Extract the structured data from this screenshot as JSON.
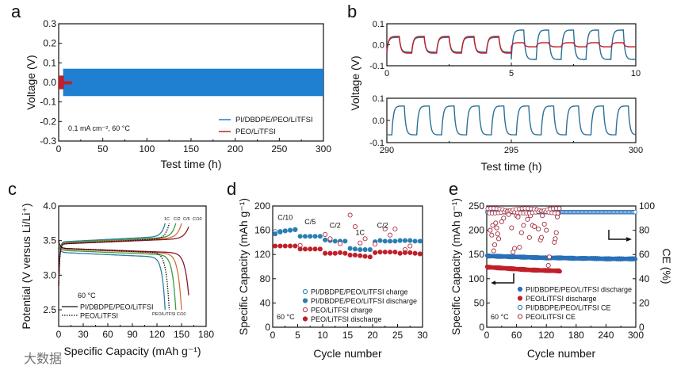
{
  "panel_letters": [
    "a",
    "b",
    "c",
    "d",
    "e"
  ],
  "watermark": "大数据",
  "colors": {
    "blue": "#1f7fd0",
    "teal": "#2a6f96",
    "red": "#c0202a",
    "darkred": "#8a1a2a",
    "green": "#3a9a4a",
    "orange": "#d0703a",
    "black": "#111111"
  },
  "chart_data": [
    {
      "id": "a",
      "type": "line",
      "xlabel": "Test time (h)",
      "ylabel": "Voltage (V)",
      "xlim": [
        0,
        300
      ],
      "ylim": [
        -0.3,
        0.3
      ],
      "xticks": [
        0,
        50,
        100,
        150,
        200,
        250,
        300
      ],
      "yticks": [
        -0.3,
        -0.2,
        -0.1,
        0.0,
        0.1,
        0.2,
        0.3
      ],
      "ytick_labels": [
        "-0.3",
        "-0.2",
        "-0.1",
        "0.0",
        "0.1",
        "0.2",
        "0.3"
      ],
      "annotation": "0.1 mA cm⁻², 60 °C",
      "series": [
        {
          "name": "PI/DBDPE/PEO/LiTFSI",
          "color": "#1f7fd0",
          "t_start": 5,
          "t_end": 300,
          "amplitude": 0.07
        },
        {
          "name": "PEO/LiTFSI",
          "color": "#c0202a",
          "t_start": 0,
          "t_end": 15,
          "amplitude": 0.035
        }
      ],
      "legend": "bottom-right"
    },
    {
      "id": "b-top",
      "type": "line",
      "xlabel": "",
      "ylabel": "Voltage (V)",
      "xlim": [
        0,
        10
      ],
      "ylim": [
        -0.1,
        0.1
      ],
      "xticks": [
        0,
        5,
        10
      ],
      "yticks": [
        -0.1,
        0.0,
        0.1
      ],
      "ytick_labels": [
        "-0.1",
        "0.0",
        "0.1"
      ],
      "period_h": 1,
      "series": [
        {
          "name": "PI/DBDPE/PEO/LiTFSI",
          "color": "#2a6f96",
          "segments": [
            {
              "from": 0,
              "to": 5,
              "amplitude": 0.035
            },
            {
              "from": 5,
              "to": 10,
              "amplitude": 0.07
            }
          ]
        },
        {
          "name": "PEO/LiTFSI",
          "color": "#c0202a",
          "segments": [
            {
              "from": 0,
              "to": 5,
              "amplitude": 0.04
            },
            {
              "from": 5,
              "to": 10,
              "amplitude": 0.01
            }
          ]
        }
      ]
    },
    {
      "id": "b-bottom",
      "type": "line",
      "xlabel": "Test time (h)",
      "ylabel": "",
      "xlim": [
        290,
        300
      ],
      "ylim": [
        -0.1,
        0.1
      ],
      "xticks": [
        290,
        295,
        300
      ],
      "yticks": [
        -0.1,
        0.0,
        0.1
      ],
      "ytick_labels": [
        "-0.1",
        "0.0",
        "0.1"
      ],
      "period_h": 1,
      "series": [
        {
          "name": "PI/DBDPE/PEO/LiTFSI",
          "color": "#2a6f96",
          "segments": [
            {
              "from": 290,
              "to": 300,
              "amplitude": 0.065
            }
          ]
        }
      ]
    },
    {
      "id": "c",
      "type": "line",
      "xlabel": "Specific Capacity (mAh g⁻¹)",
      "ylabel": "Potential (V versus Li/Li⁺)",
      "xlim": [
        0,
        180
      ],
      "ylim": [
        2.26,
        4.0
      ],
      "xticks": [
        0,
        30,
        60,
        90,
        120,
        150,
        180
      ],
      "yticks": [
        2.5,
        3.0,
        3.5,
        4.0
      ],
      "ytick_labels": [
        "2.5",
        "3.0",
        "3.5",
        "4.0"
      ],
      "temperature_label": "60 °C",
      "series": [
        {
          "name": "PI/DBDPE/PEO/LiTFSI 1C",
          "rate": "1C",
          "capacity": 130,
          "charge_plateau": 3.48,
          "discharge_plateau": 3.33,
          "color": "#2a7fa0",
          "style": "solid"
        },
        {
          "name": "PI/DBDPE/PEO/LiTFSI C/2",
          "rate": "C/2",
          "capacity": 143,
          "charge_plateau": 3.47,
          "discharge_plateau": 3.36,
          "color": "#3a9a4a",
          "style": "solid"
        },
        {
          "name": "PI/DBDPE/PEO/LiTFSI C/5",
          "rate": "C/5",
          "capacity": 150,
          "charge_plateau": 3.46,
          "discharge_plateau": 3.38,
          "color": "#d0703a",
          "style": "solid"
        },
        {
          "name": "PI/DBDPE/PEO/LiTFSI C/10",
          "rate": "C/10",
          "capacity": 160,
          "charge_plateau": 3.45,
          "discharge_plateau": 3.39,
          "color": "#8a1a2a",
          "style": "solid"
        },
        {
          "name": "PEO/LiTFSI C/10",
          "rate": "C/10",
          "capacity": 135,
          "charge_plateau": 3.45,
          "discharge_plateau": 3.39,
          "color": "#111111",
          "style": "dotted"
        }
      ],
      "legend": [
        {
          "label": "PI/DBDPE/PEO/LiTFSI",
          "style": "solid"
        },
        {
          "label": "PEO/LiTFSI",
          "style": "dotted"
        }
      ],
      "rate_labels_top": [
        "1C",
        "C/2",
        "C/5",
        "C/10"
      ],
      "bottom_label": "PEO/LiTFSI C/10"
    },
    {
      "id": "d",
      "type": "scatter",
      "xlabel": "Cycle number",
      "ylabel": "Specific Capacity (mAh g⁻¹)",
      "xlim": [
        0,
        30
      ],
      "ylim": [
        0,
        200
      ],
      "xticks": [
        0,
        5,
        10,
        15,
        20,
        25,
        30
      ],
      "yticks": [
        0,
        40,
        80,
        120,
        160,
        200
      ],
      "ytick_labels": [
        "0",
        "40",
        "80",
        "120",
        "160",
        "200"
      ],
      "temperature_label": "60 °C",
      "rate_labels": [
        {
          "label": "C/10",
          "cycle": 2.5,
          "value": 177
        },
        {
          "label": "C/5",
          "cycle": 7.5,
          "value": 170
        },
        {
          "label": "C/2",
          "cycle": 12.5,
          "value": 164
        },
        {
          "label": "1C",
          "cycle": 17.5,
          "value": 152
        },
        {
          "label": "C/2",
          "cycle": 22,
          "value": 164
        }
      ],
      "series": [
        {
          "name": "PI/DBDPE/PEO/LiTFSI charge",
          "color": "#2a7fb0",
          "filled": false,
          "x": [
            0.5,
            1.5,
            2.5,
            3.5,
            4.5
          ],
          "y": [
            158,
            158,
            159,
            160,
            161
          ]
        },
        {
          "name": "PI/DBDPE/PEO/LiTFSI discharge",
          "color": "#2a7fb0",
          "filled": true,
          "x": [
            0.5,
            1.5,
            2.5,
            3.5,
            4.5,
            5.5,
            6.5,
            7.5,
            8.5,
            9.5,
            10.5,
            11.5,
            12.5,
            13.5,
            14.5,
            15.5,
            16.5,
            17.5,
            18.5,
            19.5,
            20.5,
            21.5,
            22.5,
            23.5,
            24.5,
            25.5,
            26.5,
            27.5,
            28.5,
            29.5
          ],
          "y": [
            154,
            157,
            159,
            160,
            161,
            150,
            150,
            150,
            150,
            150,
            144,
            143,
            142,
            142,
            142,
            130,
            129,
            128,
            128,
            128,
            141,
            143,
            142,
            142,
            142,
            143,
            143,
            143,
            142,
            142
          ]
        },
        {
          "name": "PEO/LiTFSI charge",
          "color": "#b03040",
          "filled": false,
          "x": [
            5.5,
            10.5,
            11.5,
            13.5,
            15.5,
            16.5,
            17.5,
            18.5,
            20.5,
            22.5,
            23.5,
            24.5,
            26.5,
            27.5
          ],
          "y": [
            135,
            153,
            146,
            138,
            185,
            166,
            139,
            146,
            137,
            162,
            152,
            162,
            128,
            134
          ]
        },
        {
          "name": "PEO/LiTFSI discharge",
          "color": "#c0202a",
          "filled": true,
          "x": [
            0.5,
            1.5,
            2.5,
            3.5,
            4.5,
            5.5,
            6.5,
            7.5,
            8.5,
            9.5,
            10.5,
            11.5,
            12.5,
            13.5,
            14.5,
            15.5,
            16.5,
            17.5,
            18.5,
            19.5,
            20.5,
            21.5,
            22.5,
            23.5,
            24.5,
            25.5,
            26.5,
            27.5,
            28.5,
            29.5
          ],
          "y": [
            134,
            134,
            134,
            134,
            134,
            129,
            129,
            129,
            129,
            129,
            122,
            122,
            122,
            123,
            122,
            119,
            119,
            118,
            117,
            116,
            123,
            124,
            124,
            124,
            124,
            122,
            123,
            123,
            122,
            121
          ]
        }
      ],
      "legend": "bottom-right"
    },
    {
      "id": "e",
      "type": "scatter",
      "xlabel": "Cycle number",
      "ylabel": "Specific Capacity (mAh g⁻¹)",
      "y2label": "CE (%)",
      "xlim": [
        0,
        300
      ],
      "ylim": [
        0,
        250
      ],
      "y2lim": [
        0,
        100
      ],
      "xticks": [
        0,
        60,
        120,
        180,
        240,
        300
      ],
      "yticks": [
        0,
        50,
        100,
        150,
        200,
        250
      ],
      "ytick_labels": [
        "0",
        "50",
        "100",
        "150",
        "200",
        "250"
      ],
      "y2ticks": [
        0,
        20,
        40,
        60,
        80,
        100
      ],
      "temperature_label": "60 °C",
      "series": [
        {
          "name": "PI/DBDPE/PEO/LiTFSI discharge",
          "axis": "left",
          "color": "#2a70b8",
          "filled": true,
          "x": [
            1,
            30,
            60,
            90,
            120,
            150,
            180,
            210,
            240,
            270,
            300
          ],
          "y": [
            147,
            146,
            145,
            144,
            143,
            143,
            142,
            142,
            141,
            141,
            141
          ]
        },
        {
          "name": "PEO/LiTFSI discharge",
          "axis": "left",
          "color": "#c0202a",
          "filled": true,
          "x": [
            1,
            30,
            60,
            90,
            120,
            148
          ],
          "y": [
            124,
            122,
            120,
            118,
            117,
            116
          ]
        },
        {
          "name": "PI/DBDPE/PEO/LiTFSI CE",
          "axis": "right",
          "color": "#2a70b8",
          "filled": false,
          "x": [
            1,
            30,
            60,
            90,
            120,
            150,
            180,
            210,
            240,
            270,
            300
          ],
          "y": [
            95,
            95,
            95,
            95,
            95,
            95,
            95,
            95,
            95,
            95,
            95
          ]
        },
        {
          "name": "PEO/LiTFSI CE",
          "axis": "right",
          "color": "#a03040",
          "filled": false,
          "x": [
            4,
            7,
            10,
            12,
            14,
            16,
            18,
            20,
            22,
            24,
            26,
            30,
            34,
            38,
            44,
            50,
            53,
            56,
            60,
            63,
            66,
            70,
            74,
            78,
            82,
            86,
            88,
            92,
            96,
            100,
            104,
            108,
            110,
            112,
            116,
            120,
            124,
            126,
            128,
            132,
            136,
            138,
            140,
            142,
            144,
            146
          ],
          "y": [
            97,
            80,
            76,
            84,
            63,
            68,
            86,
            82,
            77,
            73,
            96,
            87,
            90,
            95,
            93,
            82,
            62,
            65,
            92,
            91,
            66,
            78,
            84,
            95,
            89,
            74,
            92,
            84,
            83,
            97,
            81,
            72,
            74,
            92,
            85,
            80,
            51,
            58,
            98,
            95,
            70,
            73,
            78,
            91,
            94,
            98
          ]
        }
      ],
      "legend": "bottom-right"
    }
  ]
}
